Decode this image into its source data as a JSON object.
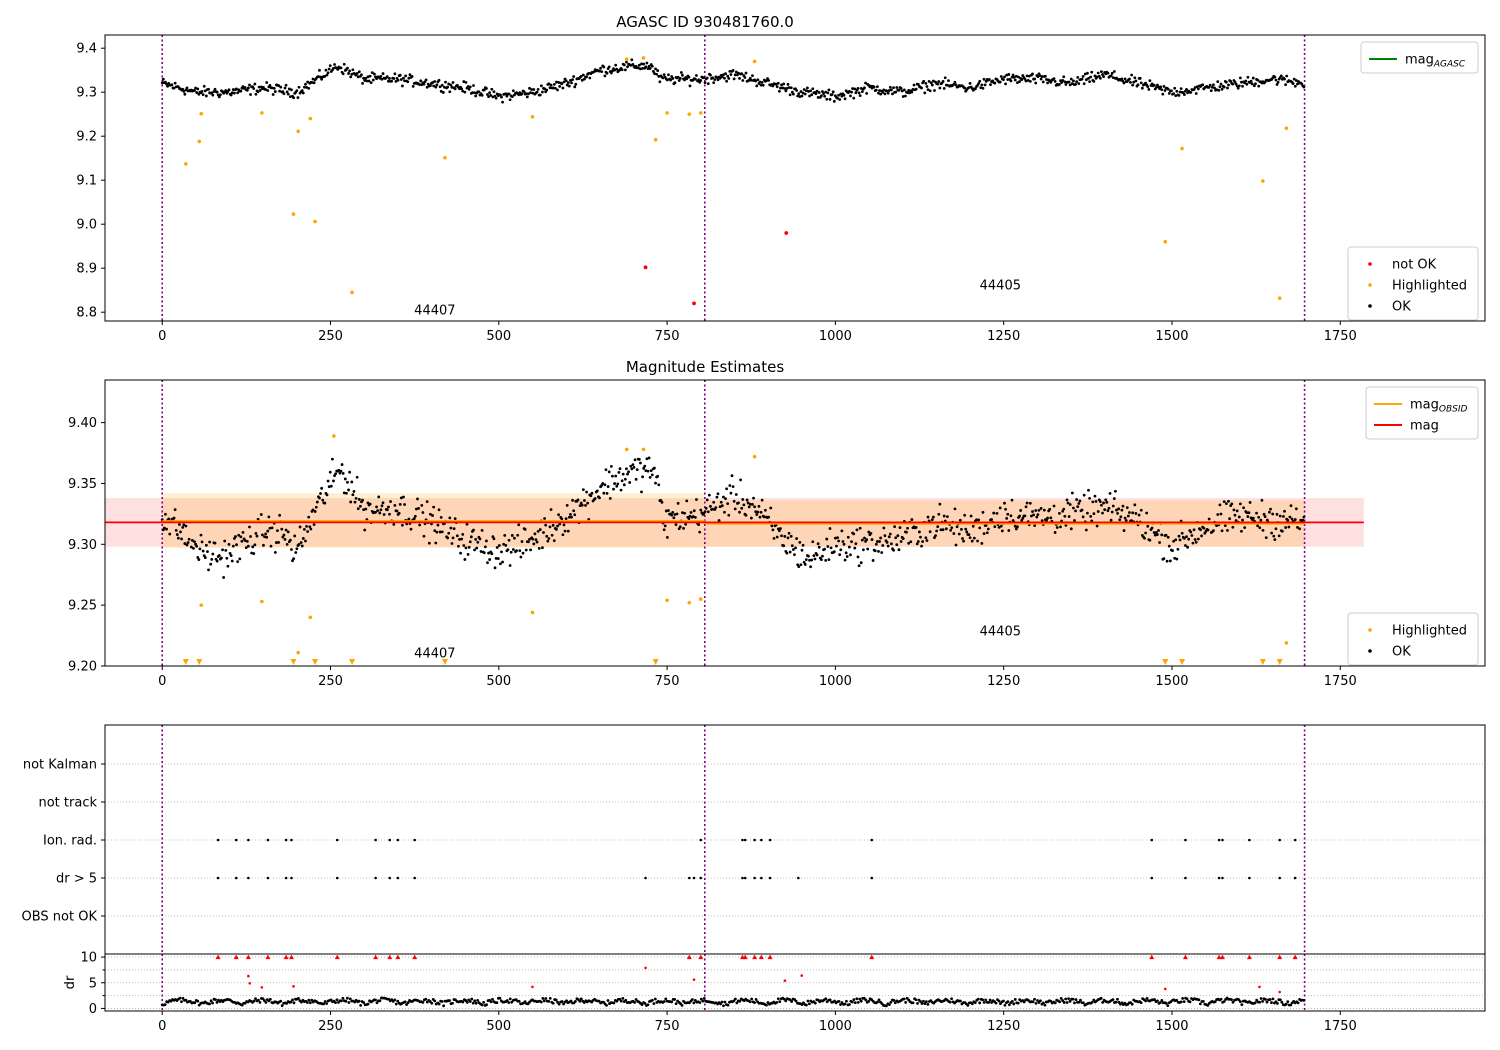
{
  "chart_data": [
    {
      "type": "scatter",
      "title": "AGASC ID 930481760.0",
      "xlim": [
        -85,
        1965
      ],
      "ylim": [
        8.78,
        9.43
      ],
      "xticks": [
        0,
        250,
        500,
        750,
        1000,
        1250,
        1500,
        1750
      ],
      "yticks": [
        8.8,
        8.9,
        9.0,
        9.1,
        9.2,
        9.3,
        9.4
      ],
      "ytick_labels": [
        "8.8",
        "8.9",
        "9.0",
        "9.1",
        "9.2",
        "9.3",
        "9.4"
      ],
      "legend_upper": {
        "placement": "top-right",
        "entries": [
          {
            "label": "mag",
            "sub": "AGASC",
            "color": "#008000",
            "kind": "line"
          }
        ]
      },
      "legend_lower": {
        "placement": "bottom-right",
        "entries": [
          {
            "label": "not OK",
            "color": "#ff0000",
            "kind": "dot"
          },
          {
            "label": "Highlighted",
            "color": "#ffa500",
            "kind": "dot"
          },
          {
            "label": "OK",
            "color": "#000000",
            "kind": "dot"
          }
        ]
      },
      "observation_boundaries": [
        0,
        806,
        1697
      ],
      "observation_labels": [
        {
          "text": "44407",
          "x": 405,
          "y": 8.795
        },
        {
          "text": "44405",
          "x": 1245,
          "y": 8.852
        }
      ],
      "ok_trend": {
        "x": [
          0,
          50,
          100,
          150,
          200,
          230,
          260,
          300,
          350,
          400,
          450,
          500,
          550,
          600,
          650,
          700,
          725,
          740,
          800,
          850,
          900,
          950,
          1000,
          1050,
          1100,
          1150,
          1200,
          1250,
          1300,
          1350,
          1400,
          1450,
          1500,
          1550,
          1600,
          1650,
          1700
        ],
        "y": [
          9.32,
          9.3,
          9.3,
          9.31,
          9.3,
          9.33,
          9.36,
          9.33,
          9.33,
          9.32,
          9.31,
          9.29,
          9.3,
          9.32,
          9.35,
          9.36,
          9.36,
          9.33,
          9.33,
          9.34,
          9.32,
          9.3,
          9.29,
          9.31,
          9.3,
          9.32,
          9.31,
          9.33,
          9.33,
          9.32,
          9.34,
          9.32,
          9.3,
          9.31,
          9.32,
          9.33,
          9.32
        ]
      },
      "ok_scatter_amplitude": 0.012,
      "highlighted": {
        "x": [
          35,
          55,
          58,
          148,
          195,
          202,
          220,
          227,
          282,
          420,
          550,
          690,
          715,
          733,
          750,
          783,
          800,
          880,
          1490,
          1515,
          1635,
          1660,
          1670
        ],
        "y": [
          9.137,
          9.188,
          9.251,
          9.253,
          9.023,
          9.211,
          9.24,
          9.006,
          8.845,
          9.151,
          9.244,
          9.375,
          9.378,
          9.192,
          9.253,
          9.25,
          9.253,
          9.37,
          8.96,
          9.172,
          9.098,
          8.832,
          9.218
        ]
      },
      "not_ok": {
        "x": [
          718,
          790,
          927
        ],
        "y": [
          8.902,
          8.82,
          8.98
        ]
      }
    },
    {
      "type": "scatter",
      "title": "Magnitude Estimates",
      "xlim": [
        -85,
        1965
      ],
      "ylim": [
        9.2,
        9.435
      ],
      "xticks": [
        0,
        250,
        500,
        750,
        1000,
        1250,
        1500,
        1750
      ],
      "yticks": [
        9.2,
        9.25,
        9.3,
        9.35,
        9.4
      ],
      "ytick_labels": [
        "9.20",
        "9.25",
        "9.30",
        "9.35",
        "9.40"
      ],
      "legend_upper": {
        "placement": "top-right",
        "entries": [
          {
            "label": "mag",
            "sub": "OBSID",
            "color": "#ffa500",
            "kind": "line"
          },
          {
            "label": "mag",
            "sub": "",
            "color": "#ff0000",
            "kind": "line"
          }
        ]
      },
      "legend_lower": {
        "placement": "bottom-right",
        "entries": [
          {
            "label": "Highlighted",
            "color": "#ffa500",
            "kind": "dot"
          },
          {
            "label": "OK",
            "color": "#000000",
            "kind": "dot"
          }
        ]
      },
      "observation_boundaries": [
        0,
        806,
        1697
      ],
      "observation_labels": [
        {
          "text": "44407",
          "x": 405,
          "y": 9.207
        },
        {
          "text": "44405",
          "x": 1245,
          "y": 9.225
        }
      ],
      "mag_overall": {
        "value": 9.318,
        "band_low": 9.298,
        "band_high": 9.338,
        "x_range": [
          -85,
          1785
        ],
        "color": "#ff0000"
      },
      "mag_obsid": [
        {
          "x_range": [
            0,
            806
          ],
          "value": 9.319,
          "band_low": 9.297,
          "band_high": 9.342
        },
        {
          "x_range": [
            806,
            1697
          ],
          "value": 9.317,
          "band_low": 9.298,
          "band_high": 9.336
        }
      ],
      "ok_trend": {
        "x": [
          0,
          30,
          60,
          90,
          120,
          150,
          180,
          195,
          205,
          230,
          250,
          265,
          300,
          350,
          400,
          450,
          500,
          540,
          580,
          620,
          660,
          700,
          730,
          745,
          800,
          850,
          880,
          920,
          960,
          1000,
          1050,
          1100,
          1150,
          1200,
          1250,
          1300,
          1350,
          1400,
          1450,
          1500,
          1550,
          1600,
          1650,
          1697
        ],
        "y": [
          9.322,
          9.31,
          9.293,
          9.29,
          9.3,
          9.31,
          9.31,
          9.295,
          9.3,
          9.33,
          9.35,
          9.362,
          9.328,
          9.33,
          9.318,
          9.303,
          9.295,
          9.3,
          9.315,
          9.332,
          9.35,
          9.36,
          9.362,
          9.32,
          9.325,
          9.34,
          9.33,
          9.305,
          9.288,
          9.3,
          9.3,
          9.305,
          9.318,
          9.31,
          9.325,
          9.322,
          9.325,
          9.33,
          9.32,
          9.298,
          9.315,
          9.323,
          9.32,
          9.318
        ]
      },
      "ok_scatter_amplitude": 0.014,
      "highlighted": {
        "x": [
          58,
          148,
          202,
          220,
          255,
          550,
          690,
          715,
          750,
          783,
          800,
          880,
          1670
        ],
        "y": [
          9.25,
          9.253,
          9.211,
          9.24,
          9.389,
          9.244,
          9.378,
          9.378,
          9.254,
          9.252,
          9.255,
          9.372,
          9.219
        ]
      },
      "below_range_markers": {
        "x": [
          35,
          55,
          195,
          227,
          282,
          420,
          733,
          1490,
          1515,
          1635,
          1660
        ]
      }
    },
    {
      "type": "scatter",
      "title": "",
      "xlim": [
        -85,
        1965
      ],
      "flag_rows": [
        "not Kalman",
        "not track",
        "Ion. rad.",
        "dr > 5",
        "OBS not OK"
      ],
      "observation_boundaries": [
        0,
        806,
        1697
      ],
      "ion_rad": {
        "x": [
          83,
          110,
          128,
          157,
          184,
          192,
          260,
          317,
          338,
          350,
          375,
          800,
          862,
          866,
          880,
          890,
          903,
          1054,
          1470,
          1520,
          1570,
          1575,
          1615,
          1660,
          1683
        ]
      },
      "dr_gt_5": {
        "x": [
          83,
          110,
          128,
          157,
          184,
          192,
          260,
          317,
          338,
          350,
          375,
          718,
          783,
          790,
          800,
          862,
          866,
          880,
          890,
          903,
          945,
          1054,
          1470,
          1520,
          1570,
          1575,
          1615,
          1660,
          1683
        ]
      }
    },
    {
      "type": "scatter",
      "title": "",
      "xlim": [
        -85,
        1965
      ],
      "ylim": [
        -0.5,
        10.6
      ],
      "ylabel": "dr",
      "yticks": [
        0,
        5,
        10
      ],
      "ytick_labels": [
        "0",
        "5",
        "10"
      ],
      "xticks": [
        0,
        250,
        500,
        750,
        1000,
        1250,
        1500,
        1750
      ],
      "observation_boundaries": [
        0,
        806,
        1697
      ],
      "red_at_limit": {
        "x": [
          83,
          110,
          128,
          157,
          184,
          192,
          260,
          317,
          338,
          350,
          375,
          783,
          800,
          862,
          866,
          880,
          890,
          903,
          1054,
          1470,
          1520,
          1570,
          1575,
          1615,
          1660,
          1683
        ]
      },
      "red_points": {
        "x": [
          128,
          130,
          148,
          195,
          550,
          718,
          790,
          925,
          950,
          1490,
          1630,
          1660
        ],
        "y": [
          6.3,
          4.9,
          4.1,
          4.3,
          4.2,
          7.9,
          5.6,
          5.4,
          6.4,
          3.8,
          4.2,
          3.2
        ]
      },
      "ok_scatter_amplitude": 0.9
    }
  ]
}
